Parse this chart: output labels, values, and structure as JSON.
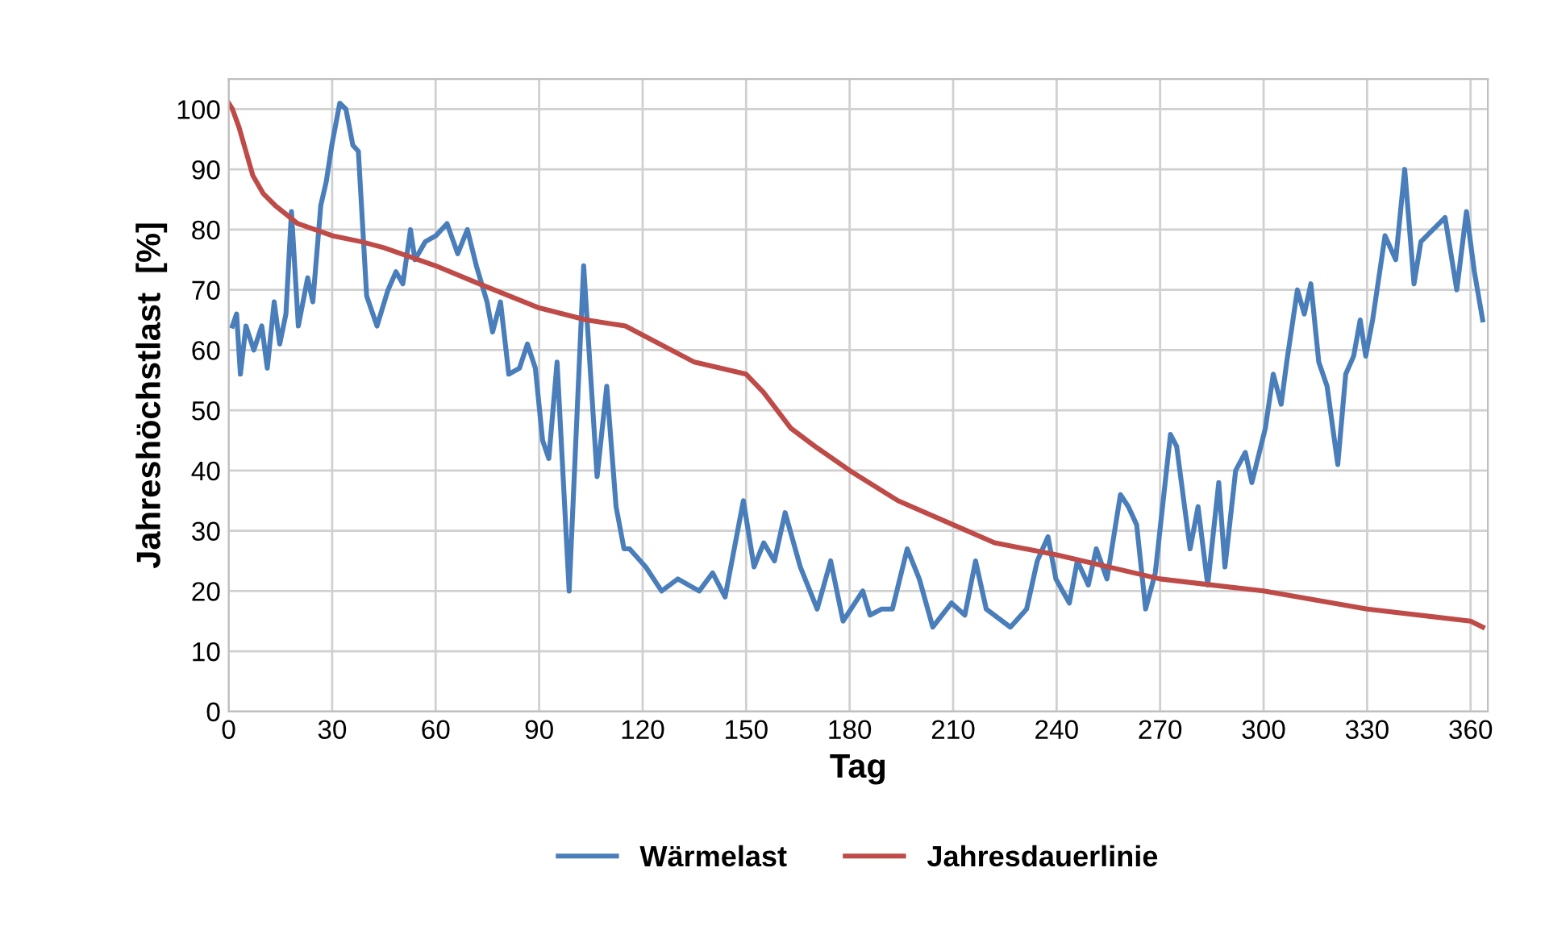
{
  "chart_data": {
    "type": "line",
    "xlabel": "Tag",
    "ylabel": "Jahreshöchstlast  [%]",
    "xlim": [
      0,
      365
    ],
    "xticks": [
      0,
      30,
      60,
      90,
      120,
      150,
      180,
      210,
      240,
      270,
      300,
      330,
      360
    ],
    "ylim": [
      0,
      105
    ],
    "yticks": [
      0,
      10,
      20,
      30,
      40,
      50,
      60,
      70,
      80,
      90,
      100
    ],
    "grid": true,
    "legend": "bottom",
    "marker": "none",
    "line_style": "solid",
    "series": [
      {
        "name": "Wärmelast",
        "color": "#4a7ebb",
        "x": [
          1.1,
          2.3,
          3.4,
          5,
          7.3,
          9.6,
          11.2,
          13.2,
          14.8,
          16.6,
          18.2,
          20.2,
          22.9,
          24.4,
          26.7,
          28.3,
          29.9,
          32.2,
          34,
          36,
          37.6,
          40,
          43,
          46.2,
          48.5,
          50.5,
          52.7,
          54,
          57,
          60.1,
          63.3,
          66.4,
          69.2,
          71.8,
          74.9,
          76.5,
          78.8,
          81.2,
          84.3,
          86.6,
          88.9,
          91,
          92.8,
          95.2,
          98.7,
          102.9,
          106.8,
          109.6,
          112.3,
          114.6,
          116.2,
          120.9,
          125.5,
          130.2,
          136.4,
          140.3,
          143.9,
          149.2,
          152.3,
          155.1,
          158.2,
          161.3,
          165.7,
          170.6,
          174.5,
          178.1,
          183.8,
          185.9,
          189.3,
          192.4,
          196.7,
          200.2,
          204.1,
          209.5,
          213.4,
          216.5,
          219.6,
          226.6,
          231.3,
          234.4,
          237.5,
          239.8,
          243.7,
          246,
          249.2,
          251.5,
          254.6,
          258.5,
          260.8,
          263.2,
          265.8,
          268.6,
          273,
          274.8,
          278.7,
          281,
          283.8,
          287,
          288.8,
          291.9,
          294.7,
          296.6,
          300.5,
          302.8,
          305.1,
          306.7,
          309.8,
          311.8,
          313.7,
          316,
          318.4,
          321.5,
          323.8,
          326.1,
          328,
          329.6,
          331.6,
          335.2,
          338.3,
          340.9,
          343.6,
          345.6,
          352.6,
          356,
          358.8,
          361.1,
          363.5
        ],
        "values": [
          64,
          66,
          56,
          64,
          60,
          64,
          57,
          68,
          61,
          66,
          83,
          64,
          72,
          68,
          84,
          88,
          94,
          101,
          100,
          94,
          93,
          69,
          64,
          70,
          73,
          71,
          80,
          75,
          78,
          79,
          81,
          76,
          80,
          74,
          68,
          63,
          68,
          56,
          57,
          61,
          57,
          45,
          42,
          58,
          20,
          74,
          39,
          54,
          34,
          27,
          27,
          24,
          20,
          22,
          20,
          23,
          19,
          35,
          24,
          28,
          25,
          33,
          24,
          17,
          25,
          15,
          20,
          16,
          17,
          17,
          27,
          22,
          14,
          18,
          16,
          25,
          17,
          14,
          17,
          25,
          29,
          22,
          18,
          25,
          21,
          27,
          22,
          36,
          34,
          31,
          17,
          23,
          46,
          44,
          27,
          34,
          21,
          38,
          24,
          40,
          43,
          38,
          47,
          56,
          51,
          58,
          70,
          66,
          71,
          58,
          54,
          41,
          56,
          59,
          65,
          59,
          65,
          79,
          75,
          90,
          71,
          78,
          82,
          70,
          83,
          73,
          65
        ]
      },
      {
        "name": "Jahresdauerlinie",
        "color": "#be4b48",
        "x": [
          0,
          1.1,
          3,
          5,
          7,
          10,
          13.5,
          20,
          30,
          38.4,
          45,
          60,
          72.6,
          90,
          103.7,
          115,
          135,
          150,
          155,
          163,
          170,
          180,
          194,
          210,
          222,
          240,
          270,
          300,
          330,
          360,
          363.5
        ],
        "values": [
          101,
          100,
          97,
          93,
          89,
          86,
          84,
          81,
          79,
          78,
          77,
          74,
          71,
          67,
          65,
          64,
          58,
          56,
          53,
          47,
          44,
          40,
          35,
          31,
          28,
          26,
          22,
          20,
          17,
          15,
          14
        ]
      }
    ]
  }
}
